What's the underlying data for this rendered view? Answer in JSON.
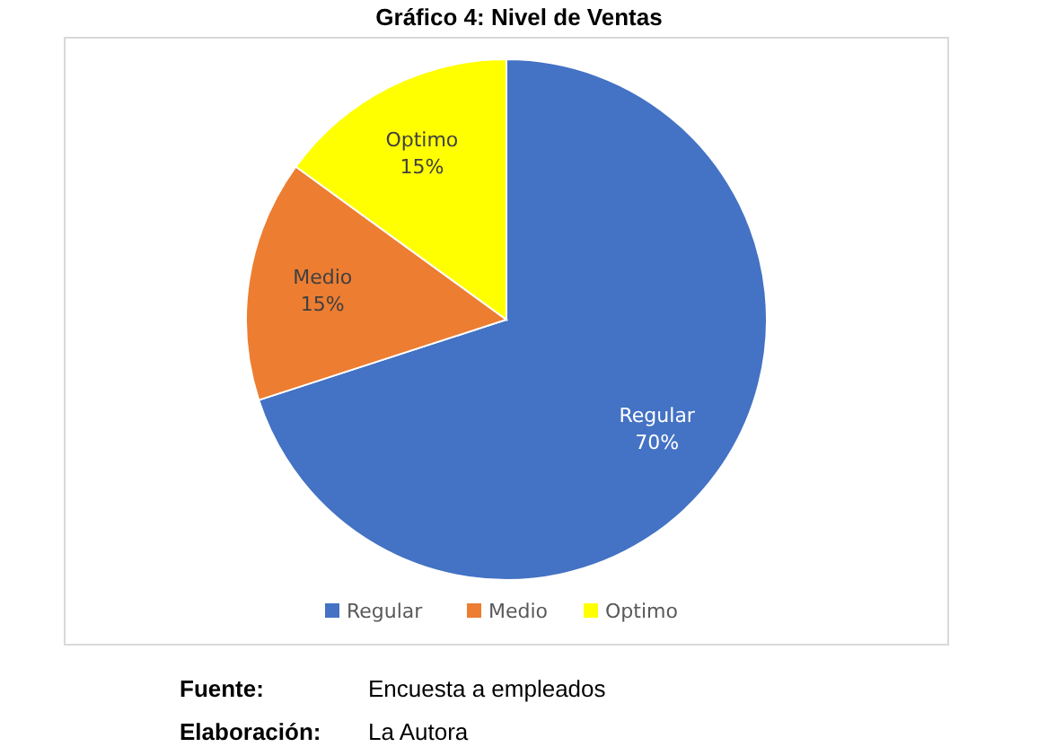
{
  "chart_data": {
    "type": "pie",
    "title": "Gráfico 4: Nivel de Ventas",
    "categories": [
      "Regular",
      "Medio",
      "Optimo"
    ],
    "values": [
      70,
      15,
      15
    ],
    "colors": [
      "#4472c4",
      "#ed7d31",
      "#ffff00"
    ],
    "value_labels": [
      "70%",
      "15%",
      "15%"
    ],
    "legend": "bottom",
    "annotations": [
      "Fuente:",
      "Encuesta a empleados",
      "Elaboración:",
      "La Autora"
    ]
  }
}
